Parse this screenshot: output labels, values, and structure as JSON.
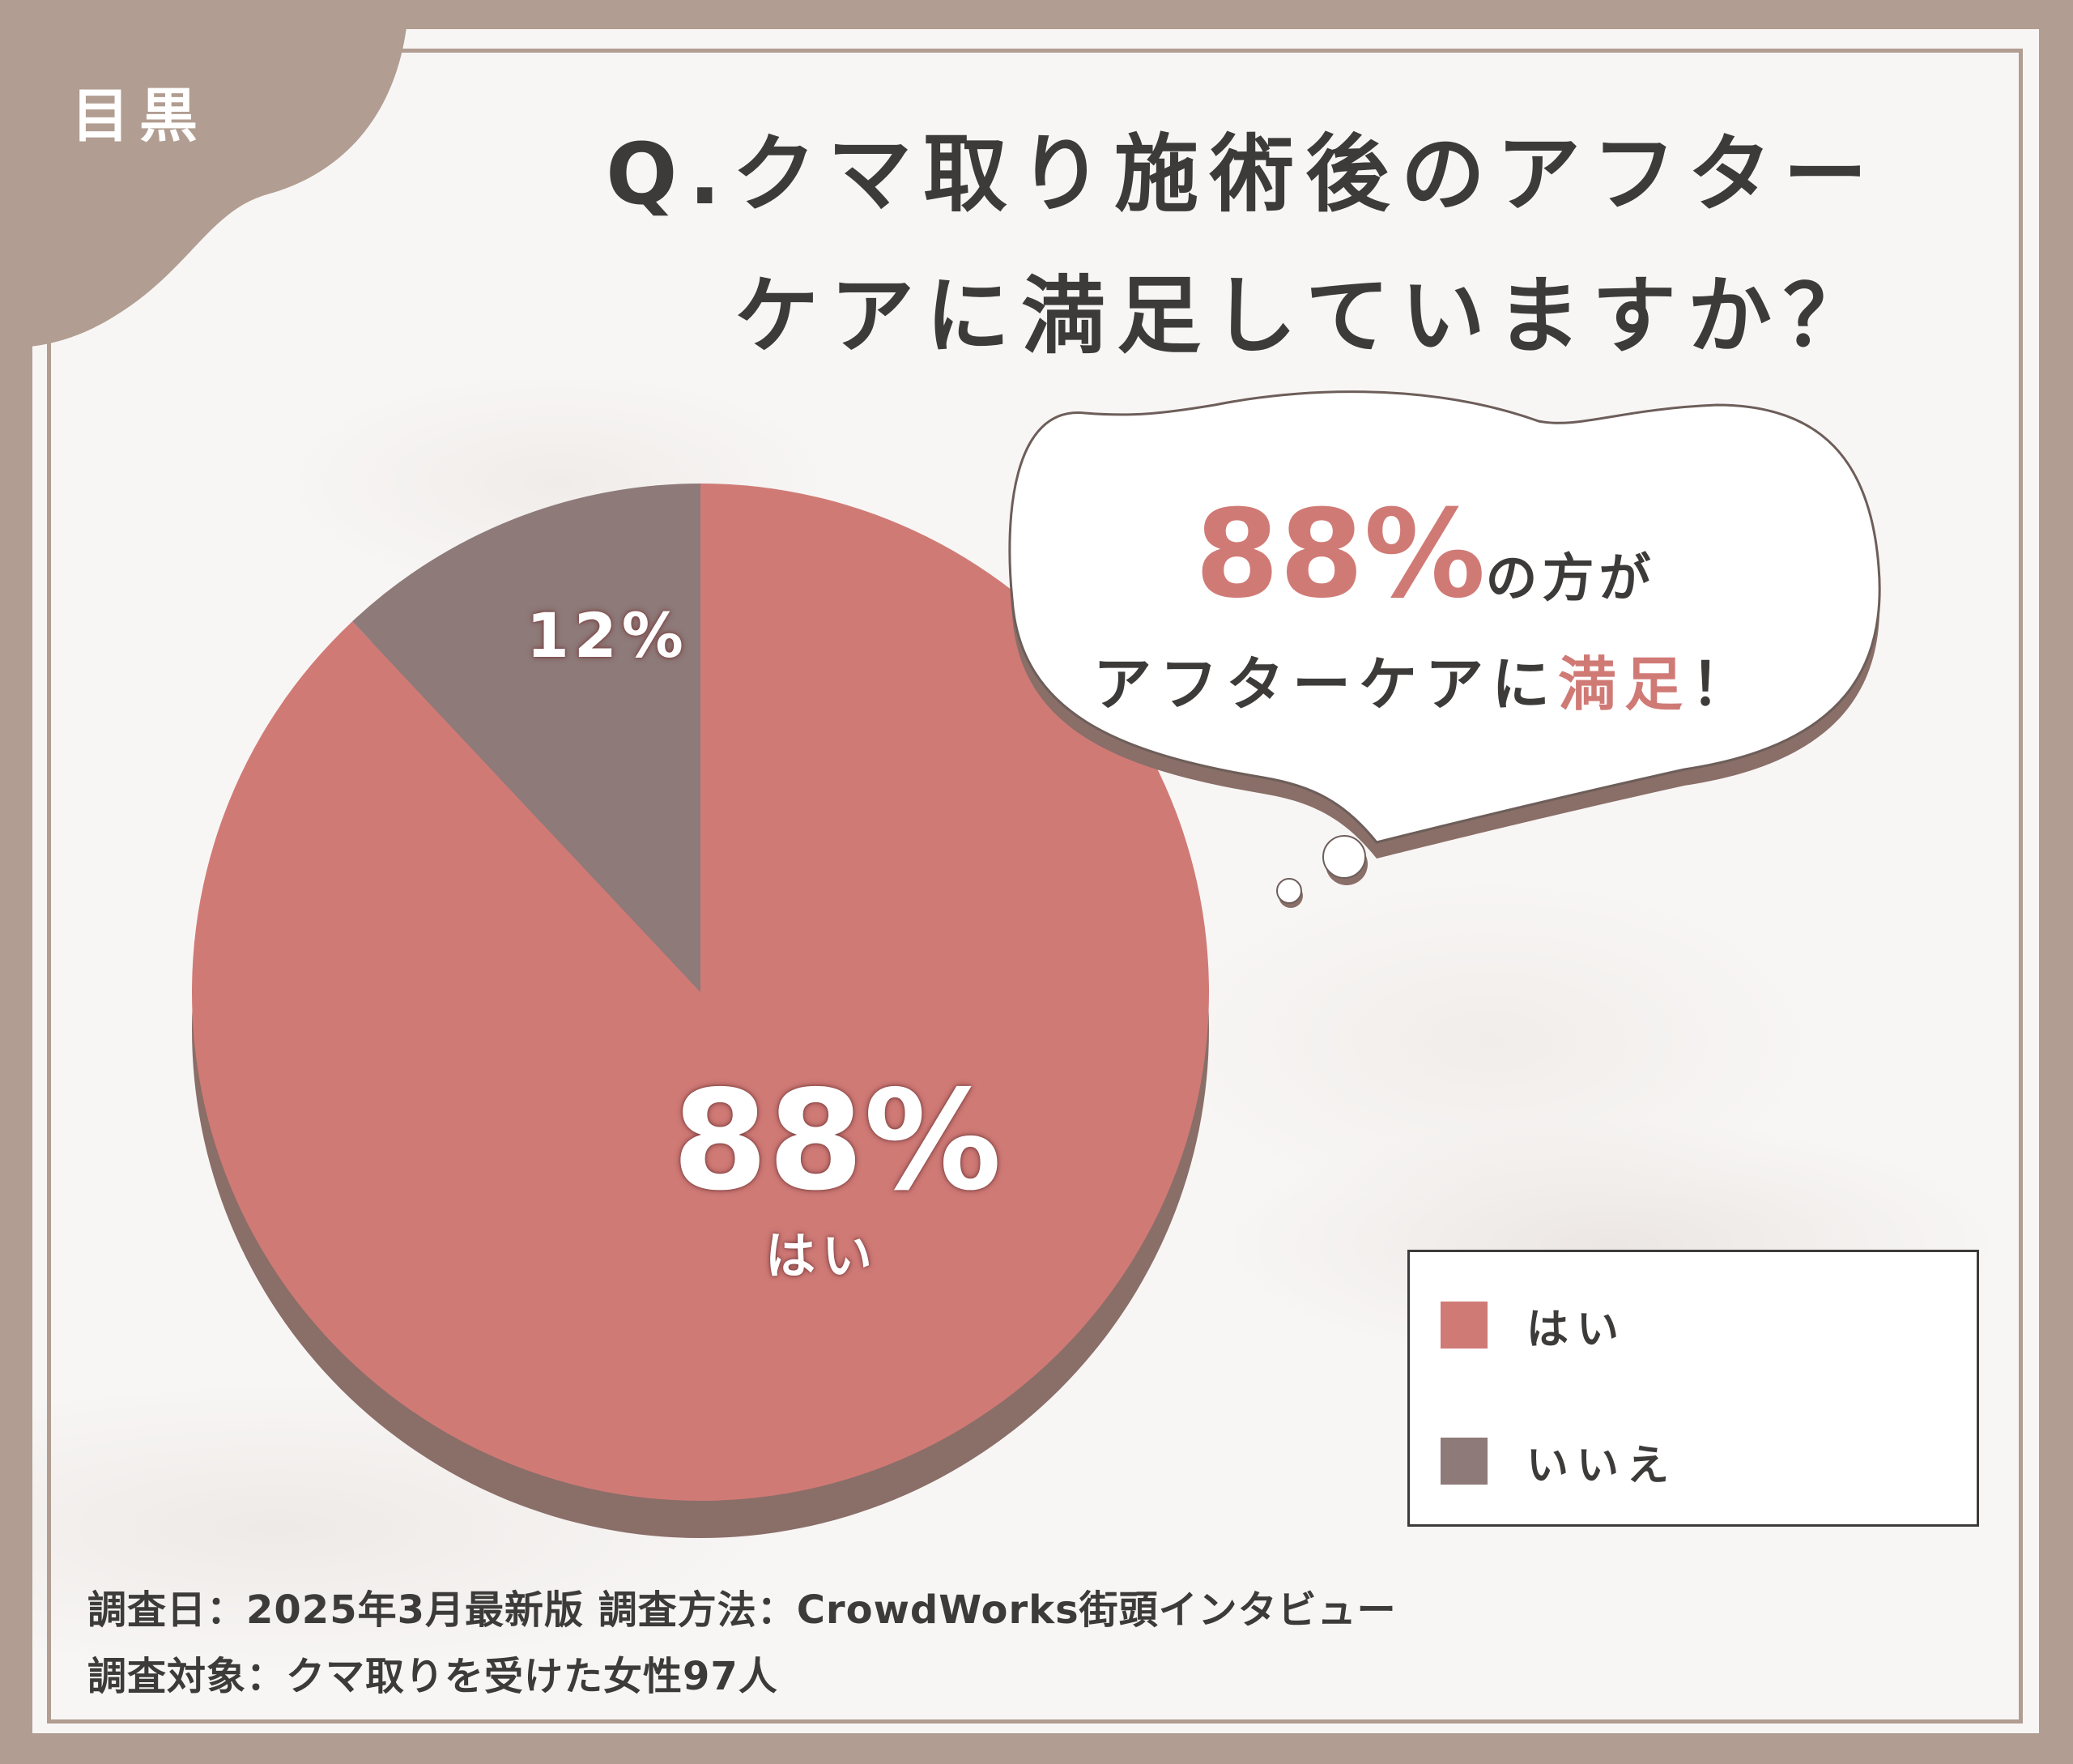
{
  "area_label": "目黒",
  "title": {
    "line1": "Q.クマ取り施術後のアフター",
    "line2": "ケアに満足していますか？"
  },
  "callout": {
    "pct": "88%",
    "line1_suffix": "の方が",
    "line2_prefix": "アフターケアに",
    "line2_accent": "満足",
    "line2_suffix": "！"
  },
  "legend": {
    "yes": "はい",
    "no": "いいえ"
  },
  "pie_labels": {
    "yes_pct": "88%",
    "yes_name": "はい",
    "no_pct": "12%"
  },
  "footer": {
    "line1": "調査日：2025年3月最新版  調査方法：CrowdWorks街頭インタビュー",
    "line2": "調査対象：クマ取りを受けた女性97人"
  },
  "colors": {
    "yes": "#d07a76",
    "no": "#8d7a79",
    "shadow": "#8a6e68",
    "frame": "#b19d91",
    "text": "#3d3b3a"
  },
  "chart_data": {
    "type": "pie",
    "categories": [
      "はい",
      "いいえ"
    ],
    "values": [
      88,
      12
    ],
    "unit": "%",
    "legend_position": "bottom-right"
  }
}
